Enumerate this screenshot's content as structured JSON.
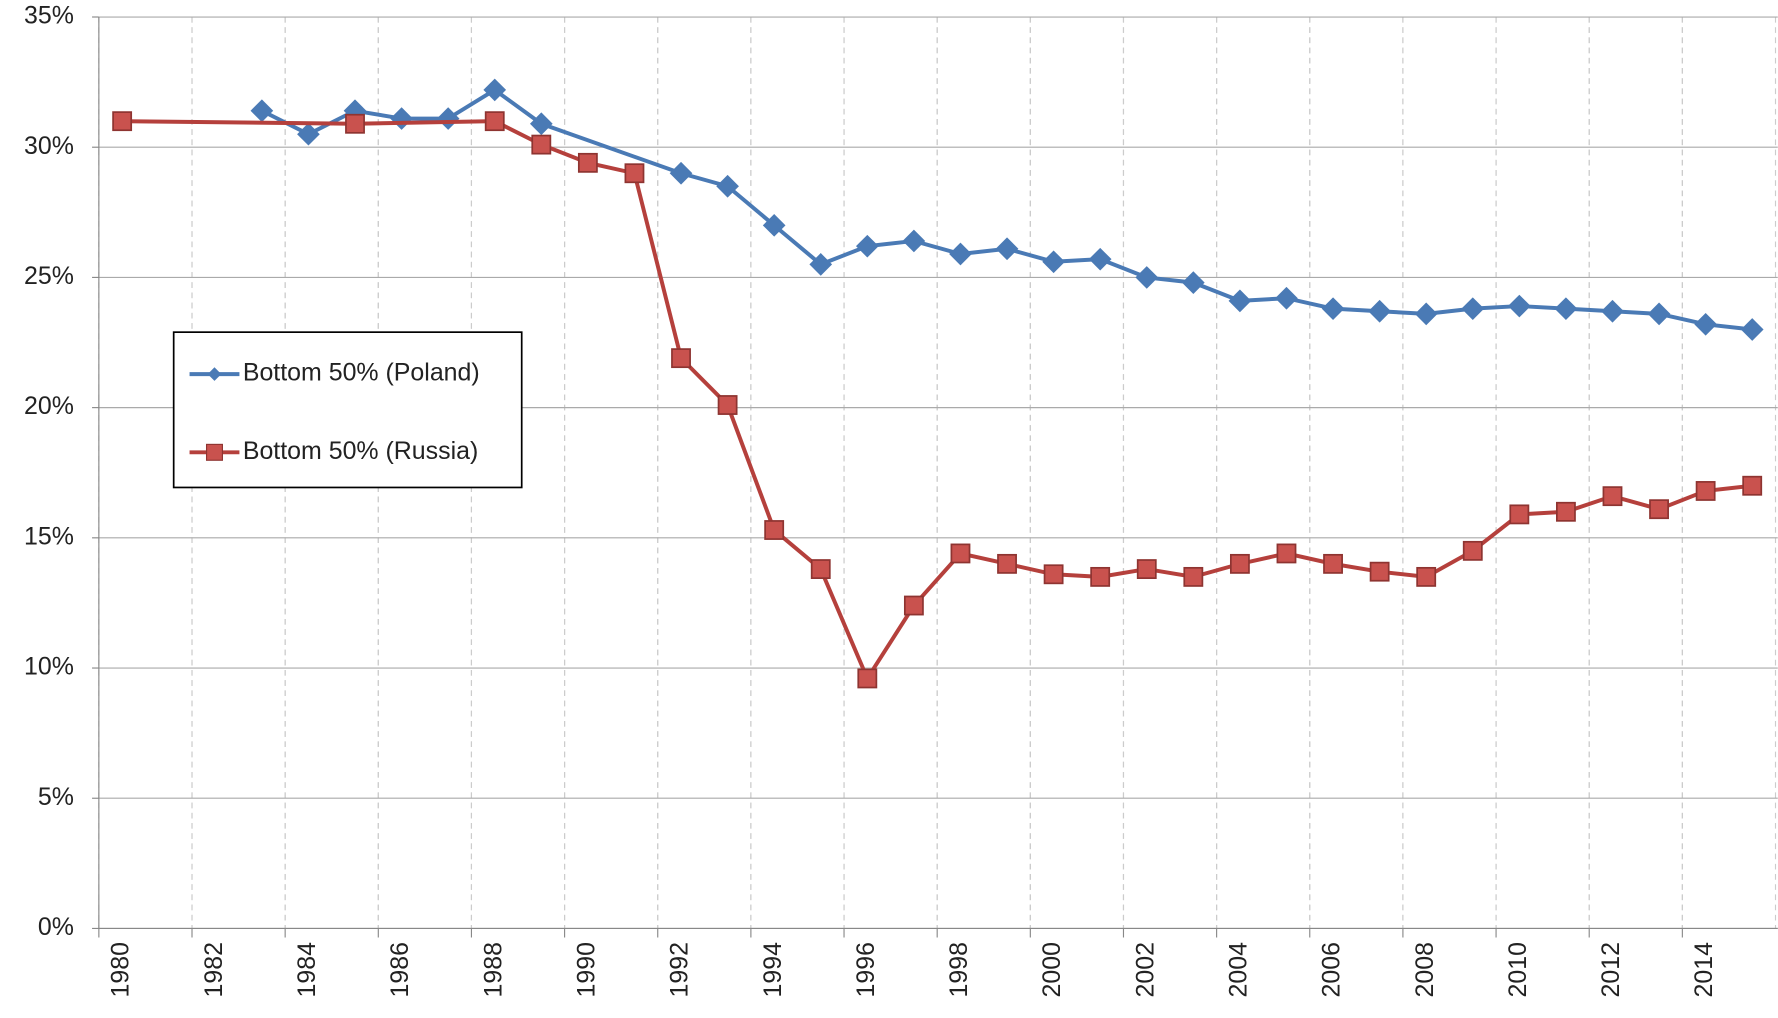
{
  "chart_data": {
    "type": "line",
    "series": [
      {
        "name": "Bottom 50% (Poland)",
        "color": "#4a7ab5",
        "marker": "diamond",
        "x": [
          1983,
          1984,
          1985,
          1986,
          1987,
          1988,
          1989,
          1992,
          1993,
          1994,
          1995,
          1996,
          1997,
          1998,
          1999,
          2000,
          2001,
          2002,
          2003,
          2004,
          2005,
          2006,
          2007,
          2008,
          2009,
          2010,
          2011,
          2012,
          2013,
          2014,
          2015
        ],
        "values": [
          31.4,
          30.5,
          31.4,
          31.1,
          31.1,
          32.2,
          30.9,
          29.0,
          28.5,
          27.0,
          25.5,
          26.2,
          26.4,
          25.9,
          26.1,
          25.6,
          25.7,
          25.0,
          24.8,
          24.1,
          24.2,
          23.8,
          23.7,
          23.6,
          23.8,
          23.9,
          23.8,
          23.7,
          23.6,
          23.2,
          23.0
        ]
      },
      {
        "name": "Bottom 50% (Russia)",
        "color": "#b5403c",
        "marker": "square",
        "x": [
          1980,
          1985,
          1988,
          1989,
          1990,
          1991,
          1992,
          1993,
          1994,
          1995,
          1996,
          1997,
          1998,
          1999,
          2000,
          2001,
          2002,
          2003,
          2004,
          2005,
          2006,
          2007,
          2008,
          2009,
          2010,
          2011,
          2012,
          2013,
          2014,
          2015
        ],
        "values": [
          31.0,
          30.9,
          31.0,
          30.1,
          29.4,
          29.0,
          21.9,
          20.1,
          15.3,
          13.8,
          9.6,
          12.4,
          14.4,
          14.0,
          13.6,
          13.5,
          13.8,
          13.5,
          14.0,
          14.4,
          14.0,
          13.7,
          13.5,
          14.5,
          15.9,
          16.0,
          16.6,
          16.1,
          16.8,
          17.0
        ]
      }
    ],
    "xlim": [
      1979.5,
      2015.5
    ],
    "xticks": [
      1980,
      1982,
      1984,
      1986,
      1988,
      1990,
      1992,
      1994,
      1996,
      1998,
      2000,
      2002,
      2004,
      2006,
      2008,
      2010,
      2012,
      2014
    ],
    "ylim": [
      0,
      35
    ],
    "yticks": [
      {
        "value": 0,
        "label": "0%"
      },
      {
        "value": 5,
        "label": "5%"
      },
      {
        "value": 10,
        "label": "10%"
      },
      {
        "value": 15,
        "label": "15%"
      },
      {
        "value": 20,
        "label": "20%"
      },
      {
        "value": 25,
        "label": "25%"
      },
      {
        "value": 30,
        "label": "30%"
      },
      {
        "value": 35,
        "label": "35%"
      }
    ],
    "grid": true,
    "legend": "left"
  }
}
